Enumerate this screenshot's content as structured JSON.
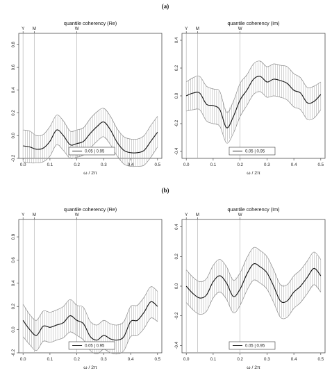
{
  "panel_labels": [
    "(a)",
    "(b)"
  ],
  "chart_data": [
    {
      "type": "line",
      "title": "quantile coherency (Re)",
      "xlabel": "ω / 2π",
      "ylabel": "",
      "xlim": [
        0,
        0.5
      ],
      "ylim": [
        -0.2,
        0.9
      ],
      "xticks": [
        "0.0",
        "0.1",
        "0.2",
        "0.3",
        "0.4",
        "0.5"
      ],
      "yticks": [
        "-0.2",
        "0.0",
        "0.2",
        "0.4",
        "0.6",
        "0.8"
      ],
      "vlines": [
        {
          "label": "Y",
          "x": 0.0
        },
        {
          "label": "M",
          "x": 0.0417
        },
        {
          "label": "W",
          "x": 0.2
        }
      ],
      "legend": {
        "label": "0.05 | 0.95",
        "position": "bottom-center"
      },
      "x": [
        0.0,
        0.025,
        0.05,
        0.075,
        0.1,
        0.125,
        0.15,
        0.175,
        0.2,
        0.225,
        0.25,
        0.275,
        0.3,
        0.325,
        0.35,
        0.375,
        0.4,
        0.425,
        0.45,
        0.475,
        0.5
      ],
      "series": [
        {
          "values": [
            -0.09,
            -0.1,
            -0.12,
            -0.11,
            -0.05,
            0.05,
            0.0,
            -0.08,
            -0.07,
            -0.05,
            0.02,
            0.08,
            0.12,
            0.05,
            -0.06,
            -0.13,
            -0.15,
            -0.15,
            -0.13,
            -0.05,
            0.03
          ]
        },
        {
          "values": [
            -0.23,
            -0.24,
            -0.24,
            -0.23,
            -0.18,
            -0.08,
            -0.13,
            -0.2,
            -0.19,
            -0.17,
            -0.11,
            -0.05,
            -0.01,
            -0.08,
            -0.18,
            -0.25,
            -0.27,
            -0.27,
            -0.26,
            -0.19,
            -0.1
          ]
        },
        {
          "values": [
            0.05,
            0.04,
            0.0,
            0.01,
            0.08,
            0.18,
            0.13,
            0.04,
            0.05,
            0.07,
            0.15,
            0.21,
            0.24,
            0.17,
            0.06,
            -0.01,
            -0.03,
            -0.03,
            0.0,
            0.09,
            0.17
          ]
        }
      ]
    },
    {
      "type": "line",
      "title": "quantile coherency (Im)",
      "xlabel": "ω / 2π",
      "ylabel": "",
      "xlim": [
        0,
        0.5
      ],
      "ylim": [
        -0.45,
        0.45
      ],
      "xticks": [
        "0.0",
        "0.1",
        "0.2",
        "0.3",
        "0.4",
        "0.5"
      ],
      "yticks": [
        "-0.4",
        "-0.2",
        "0.0",
        "0.2",
        "0.4"
      ],
      "vlines": [
        {
          "label": "Y",
          "x": 0.0
        },
        {
          "label": "M",
          "x": 0.0417
        },
        {
          "label": "W",
          "x": 0.2
        }
      ],
      "legend": {
        "label": "0.05 | 0.95",
        "position": "bottom-right"
      },
      "x": [
        0.0,
        0.025,
        0.05,
        0.075,
        0.1,
        0.125,
        0.15,
        0.175,
        0.2,
        0.225,
        0.25,
        0.275,
        0.3,
        0.325,
        0.35,
        0.375,
        0.4,
        0.425,
        0.45,
        0.475,
        0.5
      ],
      "series": [
        {
          "values": [
            0.0,
            0.02,
            0.02,
            -0.06,
            -0.07,
            -0.1,
            -0.23,
            -0.15,
            -0.03,
            0.04,
            0.12,
            0.14,
            0.1,
            0.12,
            0.11,
            0.09,
            0.04,
            0.02,
            -0.05,
            -0.04,
            0.01
          ]
        },
        {
          "values": [
            -0.11,
            -0.1,
            -0.1,
            -0.18,
            -0.2,
            -0.22,
            -0.34,
            -0.27,
            -0.15,
            -0.07,
            0.01,
            0.03,
            -0.01,
            0.0,
            -0.01,
            -0.03,
            -0.08,
            -0.1,
            -0.17,
            -0.16,
            -0.1
          ]
        },
        {
          "values": [
            0.1,
            0.13,
            0.14,
            0.07,
            0.05,
            0.03,
            -0.12,
            -0.04,
            0.09,
            0.15,
            0.23,
            0.25,
            0.21,
            0.23,
            0.22,
            0.21,
            0.16,
            0.13,
            0.06,
            0.07,
            0.1
          ]
        }
      ]
    },
    {
      "type": "line",
      "title": "quantile coherency (Re)",
      "xlabel": "ω / 2π",
      "ylabel": "",
      "xlim": [
        0,
        0.5
      ],
      "ylim": [
        -0.2,
        0.95
      ],
      "xticks": [
        "0.0",
        "0.1",
        "0.2",
        "0.3",
        "0.4",
        "0.5"
      ],
      "yticks": [
        "-0.2",
        "0.0",
        "0.2",
        "0.4",
        "0.6",
        "0.8"
      ],
      "vlines": [
        {
          "label": "Y",
          "x": 0.0
        },
        {
          "label": "M",
          "x": 0.0417
        },
        {
          "label": "W",
          "x": 0.2
        }
      ],
      "legend": {
        "label": "0.05 | 0.95",
        "position": "bottom-center"
      },
      "x": [
        0.0,
        0.025,
        0.05,
        0.075,
        0.1,
        0.125,
        0.15,
        0.175,
        0.2,
        0.225,
        0.25,
        0.275,
        0.3,
        0.325,
        0.35,
        0.375,
        0.4,
        0.425,
        0.45,
        0.475,
        0.5
      ],
      "series": [
        {
          "values": [
            0.08,
            0.0,
            -0.05,
            0.03,
            0.02,
            0.04,
            0.06,
            0.12,
            0.08,
            0.05,
            -0.06,
            -0.09,
            -0.05,
            -0.08,
            -0.09,
            -0.06,
            0.07,
            0.08,
            0.15,
            0.24,
            0.2
          ]
        },
        {
          "values": [
            -0.06,
            -0.13,
            -0.18,
            -0.1,
            -0.11,
            -0.09,
            -0.07,
            -0.02,
            -0.05,
            -0.09,
            -0.18,
            -0.21,
            -0.17,
            -0.2,
            -0.21,
            -0.18,
            -0.06,
            -0.05,
            0.01,
            0.1,
            0.07
          ]
        },
        {
          "values": [
            0.22,
            0.13,
            0.08,
            0.16,
            0.15,
            0.17,
            0.2,
            0.26,
            0.21,
            0.19,
            0.07,
            0.04,
            0.08,
            0.05,
            0.04,
            0.07,
            0.2,
            0.21,
            0.28,
            0.37,
            0.33
          ]
        }
      ]
    },
    {
      "type": "line",
      "title": "quantile coherency (Im)",
      "xlabel": "ω / 2π",
      "ylabel": "",
      "xlim": [
        0,
        0.5
      ],
      "ylim": [
        -0.45,
        0.45
      ],
      "xticks": [
        "0.0",
        "0.1",
        "0.2",
        "0.3",
        "0.4",
        "0.5"
      ],
      "yticks": [
        "-0.4",
        "-0.2",
        "0.0",
        "0.2",
        "0.4"
      ],
      "vlines": [
        {
          "label": "Y",
          "x": 0.0
        },
        {
          "label": "M",
          "x": 0.0417
        },
        {
          "label": "W",
          "x": 0.2
        }
      ],
      "legend": {
        "label": "0.05 | 0.95",
        "position": "bottom-right"
      },
      "x": [
        0.0,
        0.025,
        0.05,
        0.075,
        0.1,
        0.125,
        0.15,
        0.175,
        0.2,
        0.225,
        0.25,
        0.275,
        0.3,
        0.325,
        0.35,
        0.375,
        0.4,
        0.425,
        0.45,
        0.475,
        0.5
      ],
      "series": [
        {
          "values": [
            0.0,
            -0.05,
            -0.08,
            -0.06,
            0.03,
            0.07,
            0.02,
            -0.07,
            -0.02,
            0.08,
            0.15,
            0.13,
            0.09,
            0.0,
            -0.1,
            -0.1,
            -0.04,
            0.0,
            0.06,
            0.12,
            0.07
          ]
        },
        {
          "values": [
            -0.11,
            -0.16,
            -0.19,
            -0.17,
            -0.08,
            -0.04,
            -0.09,
            -0.18,
            -0.13,
            -0.03,
            0.04,
            0.02,
            -0.02,
            -0.11,
            -0.21,
            -0.21,
            -0.15,
            -0.11,
            -0.05,
            0.01,
            -0.04
          ]
        },
        {
          "values": [
            0.11,
            0.06,
            0.03,
            0.05,
            0.14,
            0.18,
            0.13,
            0.04,
            0.09,
            0.19,
            0.26,
            0.24,
            0.2,
            0.11,
            0.01,
            0.01,
            0.07,
            0.11,
            0.17,
            0.23,
            0.18
          ]
        }
      ]
    }
  ]
}
